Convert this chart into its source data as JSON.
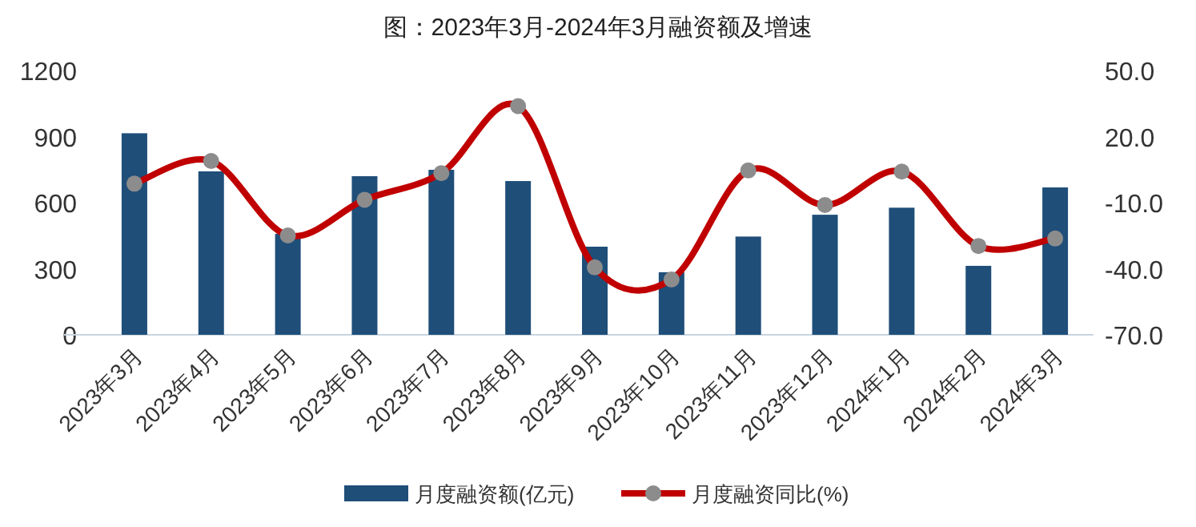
{
  "chart_data": {
    "type": "bar",
    "title": "图：2023年3月-2024年3月融资额及增速",
    "categories": [
      "2023年3月",
      "2023年4月",
      "2023年5月",
      "2023年6月",
      "2023年7月",
      "2023年8月",
      "2023年9月",
      "2023年10月",
      "2023年11月",
      "2023年12月",
      "2024年1月",
      "2024年2月",
      "2024年3月"
    ],
    "series": [
      {
        "name": "月度融资额(亿元)",
        "color": "#1f4e79",
        "values": [
          915,
          742,
          458,
          720,
          749,
          698,
          400,
          284,
          446,
          545,
          577,
          313,
          669
        ]
      },
      {
        "name": "月度融资同比(%)",
        "color": "#c00000",
        "type": "line",
        "axis": "y2",
        "marker": "circle",
        "values": [
          -1.4,
          8.9,
          -24.9,
          -8.7,
          3.4,
          33.8,
          -39.4,
          -44.9,
          4.6,
          -11.1,
          4.1,
          -29.7,
          -26.3
        ]
      }
    ],
    "ylim": [
      0,
      1200
    ],
    "yticks": [
      0,
      300,
      600,
      900,
      1200
    ],
    "y2lim": [
      -70,
      50
    ],
    "y2ticks": [
      {
        "value": -70,
        "label": "-70.0"
      },
      {
        "value": -40,
        "label": "-40.0"
      },
      {
        "value": -10,
        "label": "-10.0"
      },
      {
        "value": 20,
        "label": "20.0"
      },
      {
        "value": 50,
        "label": "50.0"
      }
    ],
    "grid": false,
    "legend": "bottom"
  }
}
